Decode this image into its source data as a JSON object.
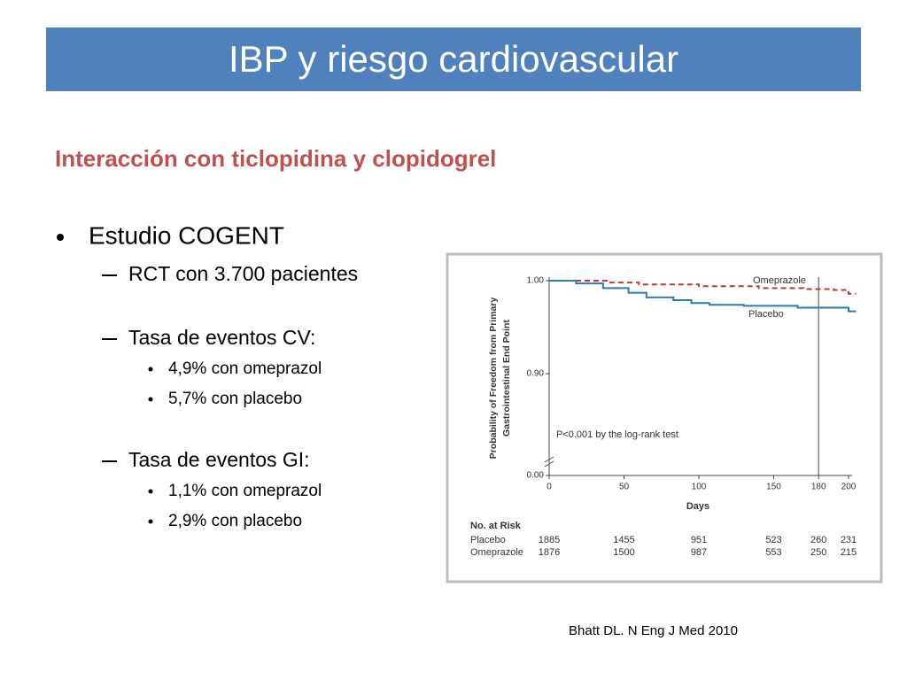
{
  "header": {
    "title": "IBP y riesgo cardiovascular"
  },
  "subtitle": "Interacción con ticlopidina y clopidogrel",
  "bullets": [
    {
      "text": "Estudio COGENT",
      "items": [
        {
          "text": "RCT con 3.700 pacientes",
          "items": []
        },
        {
          "text": "Tasa de eventos CV:",
          "items": [
            "4,9% con omeprazol",
            "5,7% con placebo"
          ]
        },
        {
          "text": "Tasa de eventos GI:",
          "items": [
            "1,1% con omeprazol",
            "2,9% con placebo"
          ]
        }
      ]
    }
  ],
  "figure": {
    "chart_data": {
      "type": "step-line",
      "y_label": [
        "Probability of Freedom from Primary",
        "Gastrointestinal End Point"
      ],
      "x_label": "Days",
      "annotation": "P<0.001 by the log-rank test",
      "xlim": [
        0,
        200
      ],
      "xticks": [
        0,
        50,
        100,
        150,
        180,
        200
      ],
      "ylim": [
        0,
        1
      ],
      "yticks": [
        {
          "value": 0,
          "label": "0.00"
        },
        {
          "value": 0.9,
          "label": "0.90"
        },
        {
          "value": 1,
          "label": "1.00"
        }
      ],
      "y_break": true,
      "vline": 180,
      "series": [
        {
          "name": "Omeprazole",
          "color": "#c0392b",
          "dashed": true,
          "x": [
            0,
            40,
            60,
            100,
            140,
            170,
            190,
            200,
            205
          ],
          "values": [
            1.0,
            0.998,
            0.996,
            0.994,
            0.992,
            0.991,
            0.99,
            0.986,
            0.986
          ]
        },
        {
          "name": "Placebo",
          "color": "#2a7ab8",
          "dashed": false,
          "x": [
            0,
            18,
            36,
            53,
            65,
            83,
            95,
            107,
            130,
            166,
            200,
            205
          ],
          "values": [
            1.0,
            0.997,
            0.992,
            0.987,
            0.982,
            0.979,
            0.976,
            0.974,
            0.973,
            0.971,
            0.967,
            0.967
          ]
        }
      ],
      "risk_table": {
        "title": "No. at Risk",
        "days": [
          0,
          50,
          100,
          150,
          180,
          200
        ],
        "rows": [
          {
            "name": "Placebo",
            "values": [
              1885,
              1455,
              951,
              523,
              260,
              231
            ]
          },
          {
            "name": "Omeprazole",
            "values": [
              1876,
              1500,
              987,
              553,
              250,
              215
            ]
          }
        ]
      }
    }
  },
  "citation": "Bhatt DL. N Eng J Med 2010"
}
